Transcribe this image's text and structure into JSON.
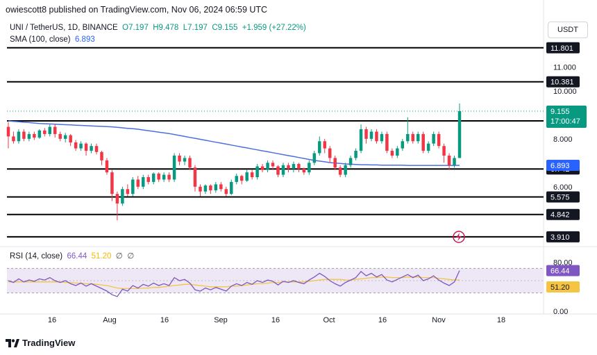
{
  "header": {
    "publisher": "owiescott8 published on TradingView.com, Nov 06, 2024 06:59 UTC"
  },
  "legend": {
    "symbol": "UNI / TetherUS, 1D, BINANCE",
    "open": "O7.197",
    "high": "H9.478",
    "low": "L7.197",
    "close": "C9.155",
    "change": "+1.959 (+27.22%)",
    "sma_label": "SMA (100, close)",
    "sma_value": "6.893",
    "rsi_label": "RSI (14, close)",
    "rsi_value": "66.44",
    "rsi_ma_value": "51.20",
    "rsi_extra1": "∅",
    "rsi_extra2": "∅"
  },
  "toolbar": {
    "currency": "USDT"
  },
  "footer": {
    "logo_text": "TradingView"
  },
  "colors": {
    "up": "#089981",
    "down": "#f23645",
    "sma": "#4a6ee0",
    "rsi": "#7e57c2",
    "rsi_ma": "#f5c542",
    "rsi_band": "#ede7f6",
    "price_tag": "#089981",
    "sma_tag": "#2962ff"
  },
  "chart_data": {
    "type": "candlestick",
    "price_axis": {
      "ylim": [
        3.5,
        12.2
      ],
      "tick_labels": [
        "11.000",
        "10.000",
        "8.000",
        "6.000"
      ],
      "tick_values": [
        11.0,
        10.0,
        8.0,
        6.0
      ]
    },
    "x_axis": {
      "tick_labels": [
        "16",
        "Aug",
        "16",
        "Sep",
        "16",
        "Oct",
        "16",
        "Nov",
        "18"
      ]
    },
    "levels": [
      {
        "label": "11.801",
        "value": 11.801
      },
      {
        "label": "10.381",
        "value": 10.381
      },
      {
        "label": "8.748",
        "value": 8.748
      },
      {
        "label": "6.742",
        "value": 6.742
      },
      {
        "label": "5.575",
        "value": 5.575
      },
      {
        "label": "4.842",
        "value": 4.842
      },
      {
        "label": "3.910",
        "value": 3.91
      }
    ],
    "last_price": {
      "label": "9.155",
      "value": 9.155,
      "countdown": "17:00:47"
    },
    "sma_tag": {
      "label": "6.893",
      "value": 6.893
    },
    "candles": [
      [
        8.5,
        8.1,
        8.7,
        7.6
      ],
      [
        8.1,
        7.9,
        8.3,
        7.8
      ],
      [
        7.9,
        8.3,
        8.4,
        7.8
      ],
      [
        8.3,
        8.0,
        8.4,
        7.9
      ],
      [
        8.0,
        8.2,
        8.3,
        7.9
      ],
      [
        8.2,
        8.05,
        8.3,
        7.95
      ],
      [
        8.05,
        8.35,
        8.4,
        8.0
      ],
      [
        8.35,
        8.2,
        8.45,
        8.1
      ],
      [
        8.2,
        8.5,
        8.6,
        8.1
      ],
      [
        8.5,
        8.2,
        8.6,
        8.05
      ],
      [
        8.2,
        8.0,
        8.3,
        7.9
      ],
      [
        8.0,
        8.15,
        8.25,
        7.85
      ],
      [
        8.15,
        7.85,
        8.2,
        7.7
      ],
      [
        7.85,
        7.6,
        7.95,
        7.5
      ],
      [
        7.6,
        7.8,
        7.9,
        7.5
      ],
      [
        7.8,
        7.5,
        7.85,
        7.3
      ],
      [
        7.5,
        7.7,
        7.8,
        7.4
      ],
      [
        7.7,
        7.45,
        7.8,
        7.35
      ],
      [
        7.45,
        7.1,
        7.5,
        6.9
      ],
      [
        7.1,
        6.6,
        7.2,
        6.5
      ],
      [
        6.6,
        5.7,
        6.7,
        5.4
      ],
      [
        5.7,
        5.3,
        5.8,
        4.6
      ],
      [
        5.3,
        5.9,
        6.0,
        5.2
      ],
      [
        5.9,
        5.7,
        6.1,
        5.6
      ],
      [
        5.7,
        6.3,
        6.4,
        5.6
      ],
      [
        6.3,
        6.0,
        6.45,
        5.9
      ],
      [
        6.0,
        6.4,
        6.5,
        5.9
      ],
      [
        6.4,
        6.2,
        6.5,
        6.1
      ],
      [
        6.2,
        6.55,
        6.6,
        6.1
      ],
      [
        6.55,
        6.3,
        6.6,
        6.2
      ],
      [
        6.3,
        6.5,
        6.6,
        6.2
      ],
      [
        6.5,
        6.3,
        6.6,
        6.2
      ],
      [
        6.3,
        7.3,
        7.4,
        6.2
      ],
      [
        7.3,
        7.05,
        7.4,
        6.9
      ],
      [
        7.05,
        7.2,
        7.3,
        6.9
      ],
      [
        7.2,
        6.8,
        7.3,
        6.7
      ],
      [
        6.8,
        6.0,
        6.9,
        5.8
      ],
      [
        6.0,
        5.8,
        6.1,
        5.6
      ],
      [
        5.8,
        6.05,
        6.1,
        5.7
      ],
      [
        6.05,
        5.85,
        6.1,
        5.7
      ],
      [
        5.85,
        6.1,
        6.2,
        5.75
      ],
      [
        6.1,
        5.9,
        6.2,
        5.8
      ],
      [
        5.9,
        5.7,
        6.0,
        5.6
      ],
      [
        5.7,
        6.2,
        6.3,
        5.65
      ],
      [
        6.2,
        6.45,
        6.55,
        6.1
      ],
      [
        6.45,
        6.25,
        6.5,
        6.1
      ],
      [
        6.25,
        6.6,
        6.7,
        6.2
      ],
      [
        6.6,
        6.4,
        6.7,
        6.3
      ],
      [
        6.4,
        6.85,
        6.95,
        6.3
      ],
      [
        6.85,
        6.7,
        6.95,
        6.6
      ],
      [
        6.7,
        7.0,
        7.1,
        6.6
      ],
      [
        7.0,
        6.85,
        7.1,
        6.7
      ],
      [
        6.85,
        6.5,
        6.9,
        6.4
      ],
      [
        6.5,
        6.9,
        7.0,
        6.4
      ],
      [
        6.9,
        6.75,
        7.0,
        6.6
      ],
      [
        6.75,
        6.95,
        7.05,
        6.6
      ],
      [
        6.95,
        6.75,
        7.0,
        6.6
      ],
      [
        6.75,
        6.6,
        6.8,
        6.5
      ],
      [
        6.6,
        7.0,
        7.1,
        6.5
      ],
      [
        7.0,
        7.4,
        7.5,
        6.9
      ],
      [
        7.4,
        7.9,
        8.1,
        7.3
      ],
      [
        7.9,
        7.6,
        8.0,
        7.4
      ],
      [
        7.6,
        7.2,
        7.7,
        7.0
      ],
      [
        7.2,
        6.8,
        7.3,
        6.7
      ],
      [
        6.8,
        6.5,
        6.9,
        6.4
      ],
      [
        6.5,
        6.9,
        7.0,
        6.4
      ],
      [
        6.9,
        7.2,
        7.3,
        6.8
      ],
      [
        7.2,
        7.5,
        7.6,
        7.1
      ],
      [
        7.5,
        8.4,
        8.6,
        7.4
      ],
      [
        8.4,
        8.0,
        8.5,
        7.8
      ],
      [
        8.0,
        8.3,
        8.4,
        7.9
      ],
      [
        8.3,
        7.9,
        8.4,
        7.8
      ],
      [
        7.9,
        8.2,
        8.3,
        7.8
      ],
      [
        8.2,
        7.5,
        8.3,
        7.4
      ],
      [
        7.5,
        7.3,
        7.6,
        7.2
      ],
      [
        7.3,
        7.6,
        7.7,
        7.2
      ],
      [
        7.6,
        7.9,
        8.0,
        7.5
      ],
      [
        7.9,
        8.2,
        8.9,
        7.8
      ],
      [
        8.2,
        7.9,
        8.3,
        7.8
      ],
      [
        7.9,
        8.2,
        8.3,
        7.8
      ],
      [
        8.2,
        7.5,
        8.3,
        7.4
      ],
      [
        7.5,
        7.8,
        7.9,
        7.4
      ],
      [
        7.8,
        8.2,
        8.3,
        7.7
      ],
      [
        8.2,
        7.7,
        8.3,
        7.6
      ],
      [
        7.7,
        7.3,
        7.8,
        7.0
      ],
      [
        7.3,
        6.9,
        7.4,
        6.7
      ],
      [
        6.9,
        7.2,
        7.3,
        6.8
      ],
      [
        7.2,
        9.155,
        9.478,
        7.197
      ]
    ],
    "sma": [
      8.75,
      8.73,
      8.71,
      8.69,
      8.68,
      8.66,
      8.64,
      8.63,
      8.62,
      8.61,
      8.6,
      8.59,
      8.58,
      8.57,
      8.56,
      8.55,
      8.54,
      8.53,
      8.52,
      8.51,
      8.5,
      8.48,
      8.46,
      8.44,
      8.42,
      8.4,
      8.37,
      8.34,
      8.31,
      8.28,
      8.25,
      8.22,
      8.18,
      8.14,
      8.1,
      8.06,
      8.02,
      7.98,
      7.94,
      7.9,
      7.86,
      7.82,
      7.78,
      7.74,
      7.7,
      7.66,
      7.62,
      7.58,
      7.54,
      7.5,
      7.46,
      7.42,
      7.38,
      7.34,
      7.3,
      7.26,
      7.22,
      7.18,
      7.14,
      7.1,
      7.07,
      7.04,
      7.01,
      6.99,
      6.97,
      6.95,
      6.94,
      6.93,
      6.92,
      6.92,
      6.91,
      6.91,
      6.9,
      6.9,
      6.9,
      6.9,
      6.9,
      6.89,
      6.89,
      6.89,
      6.89,
      6.89,
      6.89,
      6.89,
      6.89,
      6.89,
      6.89,
      6.893
    ],
    "rsi_axis": {
      "ylim": [
        0,
        100
      ],
      "tick_labels": [
        "80.00",
        "0.00"
      ],
      "tick_values": [
        80,
        0
      ],
      "band": [
        30,
        70
      ]
    },
    "rsi": [
      50,
      47,
      53,
      48,
      51,
      49,
      53,
      51,
      55,
      50,
      47,
      50,
      45,
      42,
      46,
      41,
      45,
      41,
      37,
      33,
      27,
      24,
      36,
      33,
      42,
      38,
      44,
      41,
      46,
      42,
      45,
      42,
      55,
      50,
      52,
      46,
      35,
      33,
      38,
      35,
      39,
      36,
      33,
      41,
      45,
      42,
      47,
      44,
      50,
      47,
      51,
      49,
      43,
      49,
      47,
      50,
      47,
      45,
      51,
      56,
      62,
      57,
      50,
      45,
      41,
      47,
      51,
      55,
      65,
      58,
      62,
      56,
      60,
      51,
      48,
      52,
      56,
      60,
      55,
      59,
      50,
      53,
      58,
      51,
      46,
      42,
      48,
      66.44
    ],
    "rsi_ma": [
      48,
      48,
      48,
      48,
      48,
      48,
      48,
      48,
      48,
      48,
      48,
      47,
      47,
      46,
      46,
      45,
      45,
      44,
      43,
      42,
      40,
      38,
      37,
      37,
      37,
      37,
      38,
      38,
      39,
      39,
      40,
      41,
      42,
      43,
      44,
      44,
      43,
      42,
      41,
      40,
      40,
      40,
      40,
      41,
      41,
      42,
      43,
      44,
      45,
      45,
      46,
      47,
      47,
      48,
      48,
      48,
      48,
      48,
      49,
      50,
      51,
      52,
      52,
      52,
      52,
      51,
      51,
      52,
      53,
      54,
      55,
      55,
      56,
      56,
      55,
      55,
      55,
      56,
      56,
      56,
      55,
      55,
      55,
      54,
      53,
      52,
      51,
      51.2
    ]
  }
}
